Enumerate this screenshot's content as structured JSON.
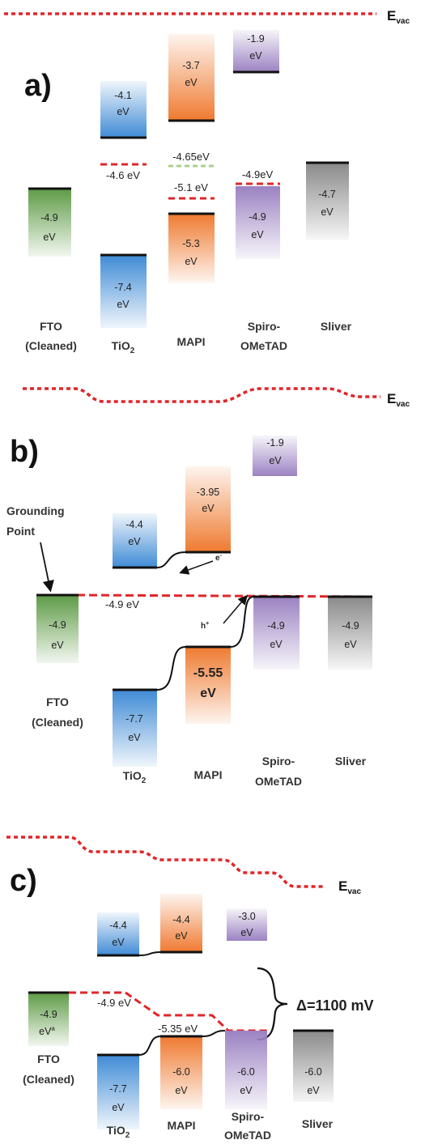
{
  "colors": {
    "fto": "#5e9b46",
    "tio2": "#3f8bd6",
    "mapi": "#ef7a30",
    "spiro": "#9b82c2",
    "silver": "#8a8a8a",
    "vacuum_line": "#e0262a",
    "fermi_line": "#e0262a",
    "green_dash": "#a8d08d"
  },
  "panels": {
    "a": {
      "label": "a)",
      "evac_main": "E",
      "evac_sub": "vac",
      "boxes": [
        {
          "key": "tio2_top",
          "line1": "-4.1",
          "line2": "eV"
        },
        {
          "key": "mapi_top",
          "line1": "-3.7",
          "line2": "eV"
        },
        {
          "key": "spiro_top",
          "line1": "-1.9",
          "line2": "eV"
        },
        {
          "key": "fto",
          "line1": "-4.9",
          "line2": "eV"
        },
        {
          "key": "tio2_bot",
          "line1": "-7.4",
          "line2": "eV"
        },
        {
          "key": "mapi_bot",
          "line1": "-5.3",
          "line2": "eV"
        },
        {
          "key": "spiro_bot",
          "line1": "-4.9",
          "line2": "eV"
        },
        {
          "key": "silver",
          "line1": "-4.7",
          "line2": "eV"
        }
      ],
      "levels": {
        "tio2_fermi": "-4.6 eV",
        "mapi_green": "-4.65eV",
        "mapi_fermi": "-5.1 eV",
        "spiro_fermi": "-4.9eV"
      },
      "materials": {
        "fto_1": "FTO",
        "fto_2": "(Cleaned)",
        "tio2_main": "TiO",
        "tio2_sub": "2",
        "mapi": "MAPI",
        "spiro_1": "Spiro-",
        "spiro_2": "OMeTAD",
        "silver": "Sliver"
      }
    },
    "b": {
      "label": "b)",
      "evac_main": "E",
      "evac_sub": "vac",
      "grounding_1": "Grounding",
      "grounding_2": "Point",
      "fermi_label": "-4.9 eV",
      "electron": "e",
      "electron_sup": "-",
      "hole": "h",
      "hole_sup": "+",
      "boxes": [
        {
          "key": "spiro_top",
          "line1": "-1.9",
          "line2": "eV"
        },
        {
          "key": "mapi_top",
          "line1": "-3.95",
          "line2": "eV"
        },
        {
          "key": "tio2_top",
          "line1": "-4.4",
          "line2": "eV"
        },
        {
          "key": "fto",
          "line1": "-4.9",
          "line2": "eV"
        },
        {
          "key": "spiro_bot",
          "line1": "-4.9",
          "line2": "eV"
        },
        {
          "key": "silver",
          "line1": "-4.9",
          "line2": "eV"
        },
        {
          "key": "mapi_bot",
          "line1": "-5.55",
          "line2": "eV"
        },
        {
          "key": "tio2_bot",
          "line1": "-7.7",
          "line2": "eV"
        }
      ],
      "materials": {
        "fto_1": "FTO",
        "fto_2": "(Cleaned)",
        "tio2_main": "TiO",
        "tio2_sub": "2",
        "mapi": "MAPI",
        "spiro_1": "Spiro-",
        "spiro_2": "OMeTAD",
        "silver": "Sliver"
      }
    },
    "c": {
      "label": "c)",
      "evac_main": "E",
      "evac_sub": "vac",
      "delta": "Δ=1100 mV",
      "fermi_1": "-4.9 eV",
      "fermi_2": "-5.35 eV",
      "boxes": [
        {
          "key": "tio2_top",
          "line1": "-4.4",
          "line2": "eV"
        },
        {
          "key": "mapi_top",
          "line1": "-4.4",
          "line2": "eV"
        },
        {
          "key": "spiro_top",
          "line1": "-3.0",
          "line2": "eV"
        },
        {
          "key": "fto",
          "line1": "-4.9",
          "line2": "eV",
          "line2_sup": "a"
        },
        {
          "key": "mapi_bot",
          "line1": "-6.0",
          "line2": "eV"
        },
        {
          "key": "spiro_bot",
          "line1": "-6.0",
          "line2": "eV"
        },
        {
          "key": "silver",
          "line1": "-6.0",
          "line2": "eV"
        },
        {
          "key": "tio2_bot",
          "line1": "-7.7",
          "line2": "eV"
        }
      ],
      "materials": {
        "fto_1": "FTO",
        "fto_2": "(Cleaned)",
        "tio2_main": "TiO",
        "tio2_sub": "2",
        "mapi": "MAPI",
        "spiro_1": "Spiro-",
        "spiro_2": "OMeTAD",
        "silver": "Sliver"
      }
    }
  }
}
